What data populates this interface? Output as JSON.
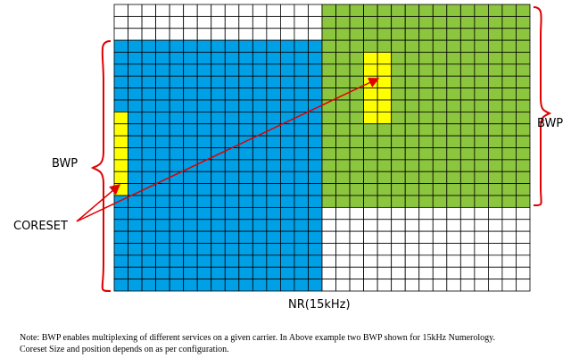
{
  "labels": {
    "bwp_left": "BWP",
    "bwp_right": "BWP",
    "coreset": "CORESET",
    "axis": "NR(15kHz)"
  },
  "note": [
    "Note: BWP enables multiplexing of different services on a given carrier. In Above example two BWP shown for 15kHz  Numerology.",
    "Coreset Size and position depends on as per configuration."
  ]
}
